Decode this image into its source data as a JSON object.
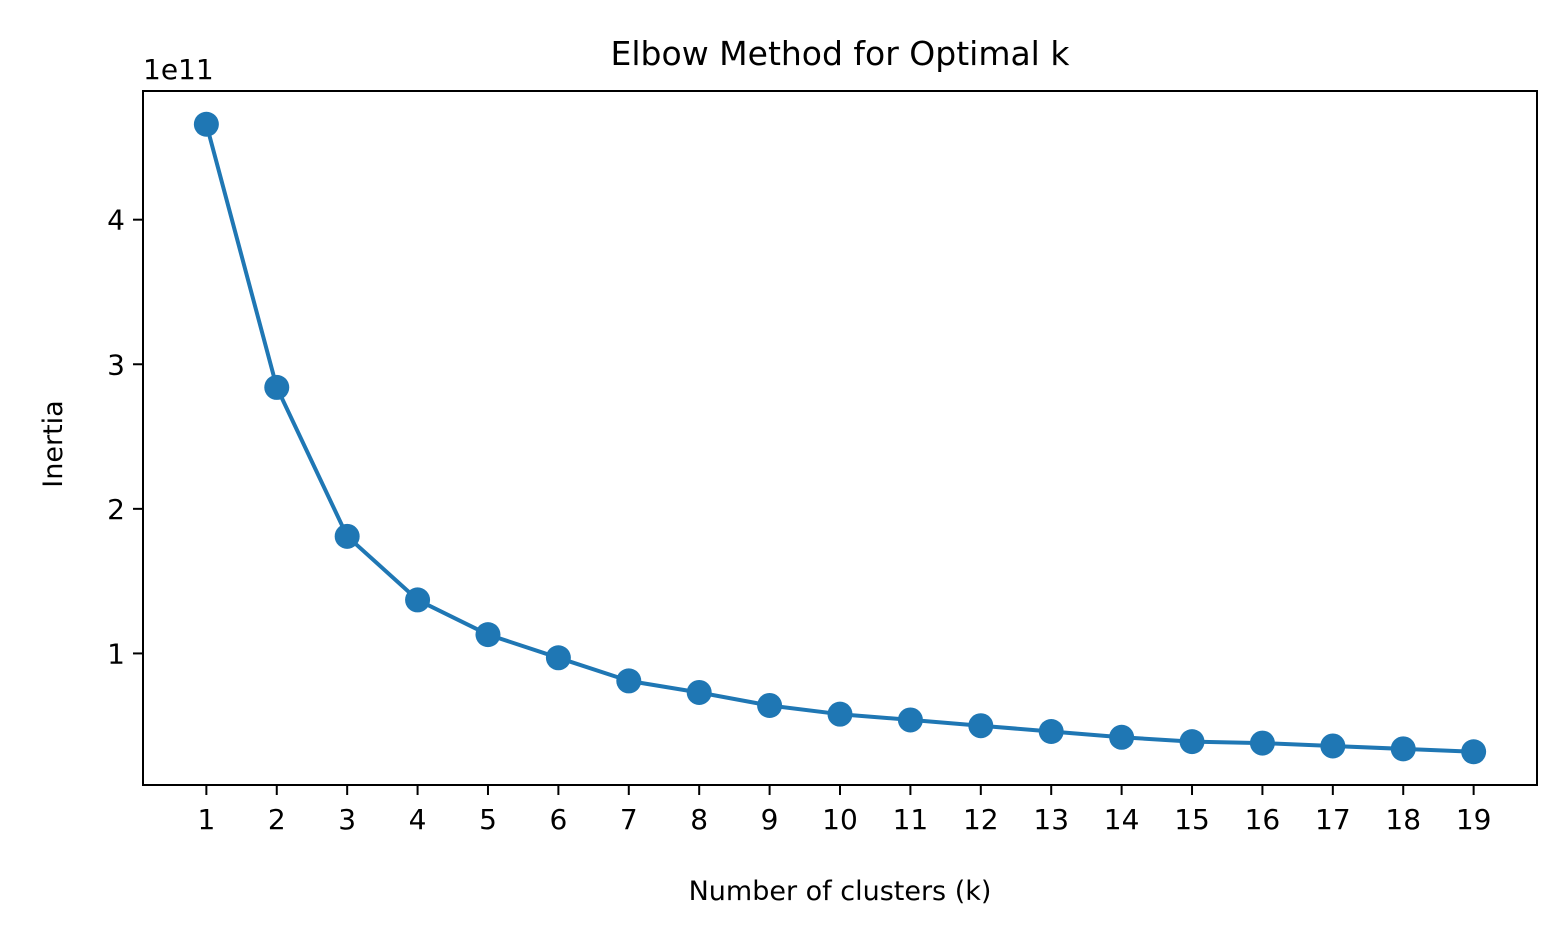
{
  "chart_data": {
    "type": "line",
    "title": "Elbow Method for Optimal k",
    "xlabel": "Number of clusters (k)",
    "ylabel": "Inertia",
    "y_offset_text": "1e11",
    "y_scale_factor": 100000000000,
    "x": [
      1,
      2,
      3,
      4,
      5,
      6,
      7,
      8,
      9,
      10,
      11,
      12,
      13,
      14,
      15,
      16,
      17,
      18,
      19
    ],
    "xticks": [
      "1",
      "2",
      "3",
      "4",
      "5",
      "6",
      "7",
      "8",
      "9",
      "10",
      "11",
      "12",
      "13",
      "14",
      "15",
      "16",
      "17",
      "18",
      "19"
    ],
    "yticks": [
      1,
      2,
      3,
      4
    ],
    "ytick_labels": [
      "1",
      "2",
      "3",
      "4"
    ],
    "xlim": [
      0.1,
      19.9
    ],
    "ylim": [
      0.09,
      4.89
    ],
    "series": [
      {
        "values": [
          4.66,
          2.84,
          1.81,
          1.37,
          1.13,
          0.97,
          0.81,
          0.73,
          0.64,
          0.58,
          0.54,
          0.5,
          0.46,
          0.42,
          0.39,
          0.38,
          0.36,
          0.34,
          0.32
        ],
        "color": "#1f77b4",
        "marker": "circle"
      }
    ],
    "grid": false,
    "legend": "none"
  }
}
